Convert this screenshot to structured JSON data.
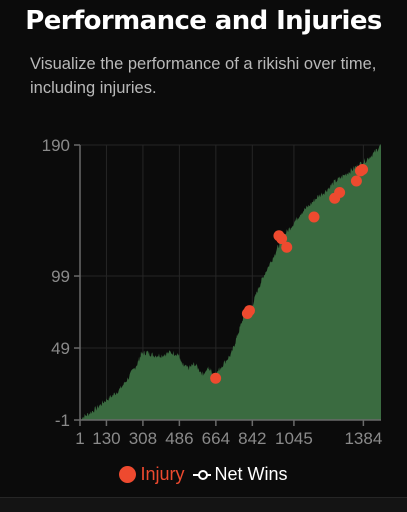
{
  "header": {
    "title": "Performance and Injuries",
    "subtitle": "Visualize the performance of a rikishi over time, including injuries."
  },
  "colors": {
    "background": "#0b0b0b",
    "area_fill": "#3a6b40",
    "injury": "#ee4a2f",
    "grid": "#262626",
    "axis": "#6a6a6a",
    "tick_text": "#8a8a8a"
  },
  "chart_data": {
    "type": "area",
    "title": "",
    "xlabel": "",
    "ylabel": "",
    "xlim": [
      1,
      1470
    ],
    "ylim": [
      -1,
      190
    ],
    "x_ticks": [
      "1",
      "130",
      "308",
      "486",
      "664",
      "842",
      "1045",
      "1384"
    ],
    "y_ticks": [
      "-1",
      "49",
      "99",
      "190"
    ],
    "x_tick_values": [
      1,
      130,
      308,
      486,
      664,
      842,
      1045,
      1384
    ],
    "y_tick_values": [
      -1,
      49,
      99,
      190
    ],
    "grid": true,
    "legend_position": "bottom",
    "series": [
      {
        "name": "Net Wins",
        "x": [
          1,
          40,
          80,
          120,
          160,
          200,
          240,
          280,
          300,
          330,
          360,
          400,
          440,
          480,
          500,
          530,
          560,
          600,
          630,
          660,
          700,
          740,
          770,
          800,
          840,
          870,
          900,
          940,
          970,
          1000,
          1040,
          1080,
          1120,
          1160,
          1200,
          1240,
          1280,
          1320,
          1360,
          1400,
          1440,
          1470
        ],
        "values": [
          0,
          3,
          7,
          12,
          16,
          21,
          29,
          38,
          45,
          46,
          44,
          44,
          46,
          45,
          37,
          35,
          38,
          31,
          35,
          30,
          38,
          45,
          58,
          71,
          78,
          90,
          100,
          111,
          120,
          128,
          135,
          143,
          148,
          154,
          158,
          164,
          168,
          172,
          176,
          180,
          185,
          190
        ]
      },
      {
        "name": "Injury",
        "x": [
          663,
          818,
          828,
          972,
          985,
          1010,
          1143,
          1244,
          1268,
          1350,
          1370,
          1380
        ],
        "values": [
          28,
          73,
          75,
          127,
          125,
          119,
          140,
          153,
          157,
          165,
          172,
          173
        ]
      }
    ]
  },
  "legend": {
    "injury_label": "Injury",
    "netwins_label": "Net Wins"
  }
}
